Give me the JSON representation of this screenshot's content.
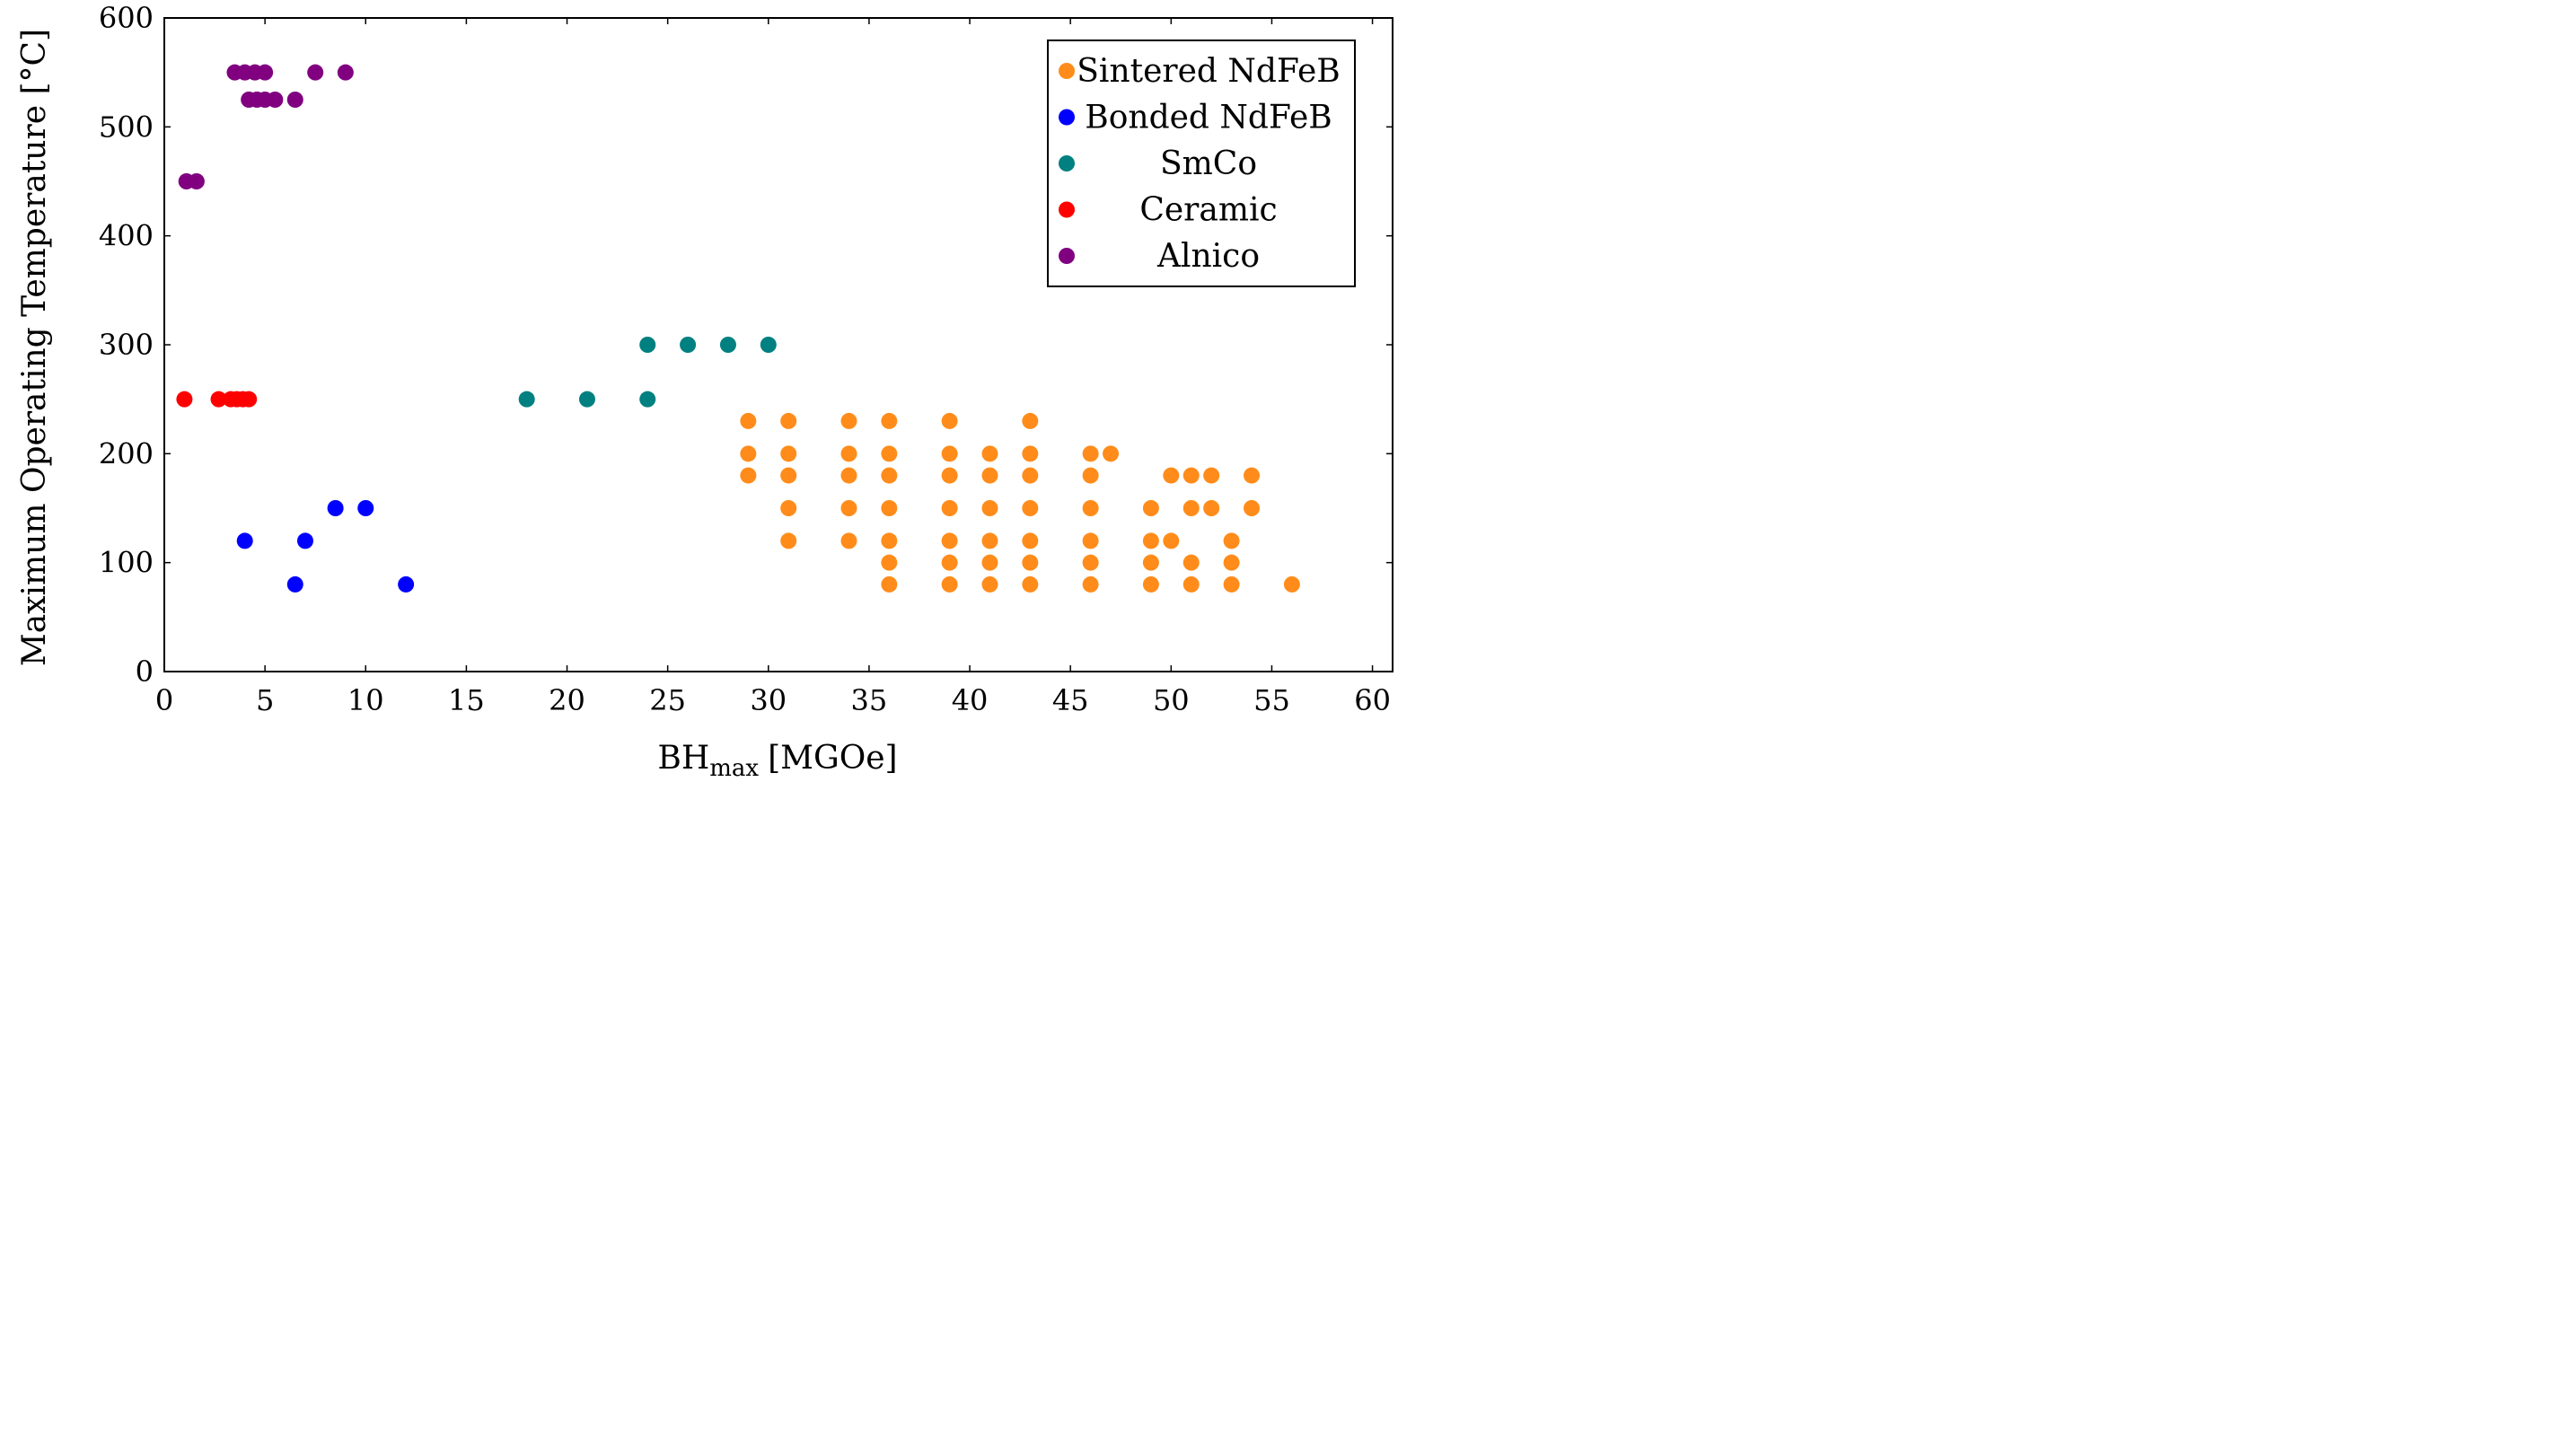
{
  "chart_data": {
    "type": "scatter",
    "title": "",
    "xlabel": {
      "main": "BH",
      "subscript": "max",
      "unit": "[MGOe]"
    },
    "ylabel": "Maximum Operating Temperature [°C]",
    "xlim": [
      0,
      61
    ],
    "ylim": [
      0,
      600
    ],
    "xticks": [
      0,
      5,
      10,
      15,
      20,
      25,
      30,
      35,
      40,
      45,
      50,
      55,
      60
    ],
    "yticks": [
      0,
      100,
      200,
      300,
      400,
      500,
      600
    ],
    "grid": false,
    "legend_position": "top-right",
    "series": [
      {
        "name": "Sintered NdFeB",
        "color": "#ff8c1a",
        "points": [
          [
            29,
            230
          ],
          [
            29,
            200
          ],
          [
            29,
            180
          ],
          [
            31,
            230
          ],
          [
            31,
            200
          ],
          [
            31,
            180
          ],
          [
            31,
            150
          ],
          [
            31,
            120
          ],
          [
            34,
            230
          ],
          [
            34,
            200
          ],
          [
            34,
            180
          ],
          [
            34,
            150
          ],
          [
            34,
            120
          ],
          [
            36,
            230
          ],
          [
            36,
            200
          ],
          [
            36,
            180
          ],
          [
            36,
            150
          ],
          [
            36,
            120
          ],
          [
            36,
            100
          ],
          [
            36,
            80
          ],
          [
            39,
            230
          ],
          [
            39,
            200
          ],
          [
            39,
            180
          ],
          [
            39,
            150
          ],
          [
            39,
            120
          ],
          [
            39,
            100
          ],
          [
            39,
            80
          ],
          [
            41,
            200
          ],
          [
            41,
            180
          ],
          [
            41,
            150
          ],
          [
            41,
            120
          ],
          [
            41,
            100
          ],
          [
            41,
            80
          ],
          [
            43,
            230
          ],
          [
            43,
            200
          ],
          [
            43,
            180
          ],
          [
            43,
            150
          ],
          [
            43,
            120
          ],
          [
            43,
            100
          ],
          [
            43,
            80
          ],
          [
            46,
            200
          ],
          [
            46,
            180
          ],
          [
            46,
            150
          ],
          [
            46,
            120
          ],
          [
            46,
            100
          ],
          [
            46,
            80
          ],
          [
            47,
            200
          ],
          [
            49,
            150
          ],
          [
            49,
            120
          ],
          [
            49,
            100
          ],
          [
            49,
            80
          ],
          [
            50,
            180
          ],
          [
            50,
            120
          ],
          [
            51,
            180
          ],
          [
            51,
            150
          ],
          [
            51,
            100
          ],
          [
            51,
            80
          ],
          [
            52,
            180
          ],
          [
            52,
            150
          ],
          [
            53,
            120
          ],
          [
            53,
            100
          ],
          [
            53,
            80
          ],
          [
            54,
            180
          ],
          [
            54,
            150
          ],
          [
            56,
            80
          ]
        ]
      },
      {
        "name": "Bonded NdFeB",
        "color": "#0000ff",
        "points": [
          [
            4,
            120
          ],
          [
            6.5,
            80
          ],
          [
            7,
            120
          ],
          [
            8.5,
            150
          ],
          [
            10,
            150
          ],
          [
            12,
            80
          ]
        ]
      },
      {
        "name": "SmCo",
        "color": "#008080",
        "points": [
          [
            18,
            250
          ],
          [
            21,
            250
          ],
          [
            24,
            250
          ],
          [
            24,
            300
          ],
          [
            26,
            300
          ],
          [
            28,
            300
          ],
          [
            30,
            300
          ]
        ]
      },
      {
        "name": "Ceramic",
        "color": "#ff0000",
        "points": [
          [
            1,
            250
          ],
          [
            2.7,
            250
          ],
          [
            3.3,
            250
          ],
          [
            3.6,
            250
          ],
          [
            3.9,
            250
          ],
          [
            4.2,
            250
          ]
        ]
      },
      {
        "name": "Alnico",
        "color": "#800080",
        "points": [
          [
            1.1,
            450
          ],
          [
            1.6,
            450
          ],
          [
            3.5,
            550
          ],
          [
            4,
            550
          ],
          [
            4.5,
            550
          ],
          [
            5,
            550
          ],
          [
            7.5,
            550
          ],
          [
            9,
            550
          ],
          [
            4.2,
            525
          ],
          [
            4.6,
            525
          ],
          [
            5,
            525
          ],
          [
            5.5,
            525
          ],
          [
            6.5,
            525
          ]
        ]
      }
    ]
  }
}
